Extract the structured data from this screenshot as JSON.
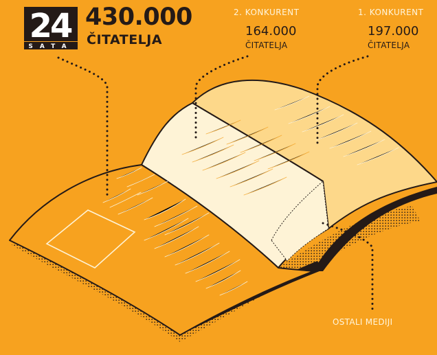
{
  "logo": {
    "number": "24",
    "word": "SATA"
  },
  "headline": {
    "number": "430.000",
    "label": "ČITATELJA"
  },
  "competitor_2": {
    "title": "2. KONKURENT",
    "number": "164.000",
    "label": "ČITATELJA"
  },
  "competitor_1": {
    "title": "1. KONKURENT",
    "number": "197.000",
    "label": "ČITATELJA"
  },
  "others": {
    "label": "OSTALI MEDIJI"
  },
  "colors": {
    "background": "#F7A21F",
    "dark": "#241a17",
    "light": "#fff5dc",
    "page_orange": "#F7A21F",
    "page_cream": "#FEF3D6",
    "page_light_orange": "#FDD88A"
  }
}
